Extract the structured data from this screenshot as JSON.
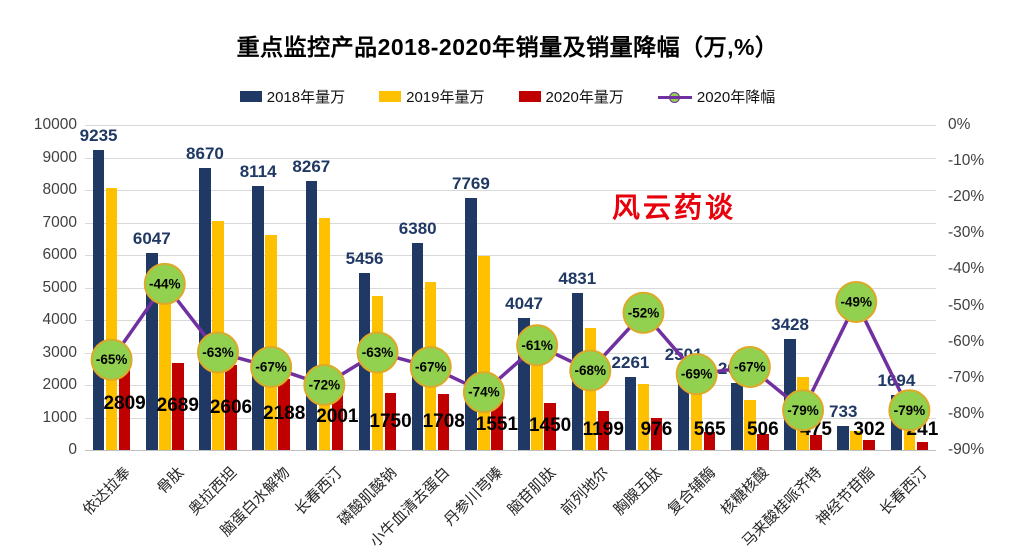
{
  "title": "重点监控产品2018-2020年销量及销量降幅（万,%）",
  "watermark": {
    "text": "风云药谈",
    "color": "#e8000b"
  },
  "legend": {
    "items": [
      {
        "label": "2018年量万",
        "swatch": "square",
        "color": "#1f3864"
      },
      {
        "label": "2019年量万",
        "swatch": "square",
        "color": "#ffc000"
      },
      {
        "label": "2020年量万",
        "swatch": "square",
        "color": "#c00000"
      },
      {
        "label": "2020年降幅",
        "swatch": "line-dot",
        "line_color": "#7030a0",
        "dot_color": "#92d050"
      }
    ]
  },
  "chart_data": {
    "type": "bar",
    "subtype": "combo-bar-line",
    "title": "重点监控产品2018-2020年销量及销量降幅（万,%）",
    "categories": [
      "依达拉奉",
      "骨肽",
      "奥拉西坦",
      "脑蛋白水解物",
      "长春西汀",
      "磷酸肌酸钠",
      "小牛血清去蛋白",
      "丹参川芎嗪",
      "脑苷肌肽",
      "前列地尔",
      "胸腺五肽",
      "复合辅酶",
      "核糖核酸",
      "马来酸桂哌齐特",
      "神经节苷脂",
      "长春西汀"
    ],
    "series": [
      {
        "name": "2018年量万",
        "type": "bar",
        "color": "#1f3864",
        "labels_shown": true,
        "values": [
          9235,
          6047,
          8670,
          8114,
          8267,
          5456,
          6380,
          7769,
          4047,
          4831,
          2261,
          2501,
          2068,
          3428,
          733,
          1694
        ]
      },
      {
        "name": "2019年量万",
        "type": "bar",
        "color": "#ffc000",
        "labels_shown": false,
        "estimated": true,
        "values": [
          8060,
          4800,
          7040,
          6630,
          7150,
          4730,
          5180,
          5970,
          3720,
          3750,
          2030,
          1820,
          1530,
          2260,
          590,
          1150
        ]
      },
      {
        "name": "2020年量万",
        "type": "bar",
        "color": "#c00000",
        "labels_shown": true,
        "values": [
          2809,
          2689,
          2606,
          2188,
          2001,
          1750,
          1708,
          1551,
          1450,
          1199,
          976,
          565,
          506,
          475,
          302,
          241
        ]
      },
      {
        "name": "2020年降幅",
        "type": "line",
        "axis": "right",
        "color": "#7030a0",
        "marker_fill": "#92d050",
        "marker_border": "#dca928",
        "labels_shown": true,
        "values_pct": [
          -65,
          -44,
          -63,
          -67,
          -72,
          -63,
          -67,
          -74,
          -61,
          -68,
          -52,
          -69,
          -67,
          -79,
          -49,
          -79
        ]
      }
    ],
    "left_axis": {
      "min": 0,
      "max": 10000,
      "step": 1000,
      "ticks": [
        "0",
        "1000",
        "2000",
        "3000",
        "4000",
        "5000",
        "6000",
        "7000",
        "8000",
        "9000",
        "10000"
      ]
    },
    "right_axis": {
      "min": -90,
      "max": 0,
      "step": 10,
      "format": "percent",
      "ticks": [
        "0%",
        "-10%",
        "-20%",
        "-30%",
        "-40%",
        "-50%",
        "-60%",
        "-70%",
        "-80%",
        "-90%"
      ]
    },
    "grid": true,
    "legend_position": "top"
  }
}
